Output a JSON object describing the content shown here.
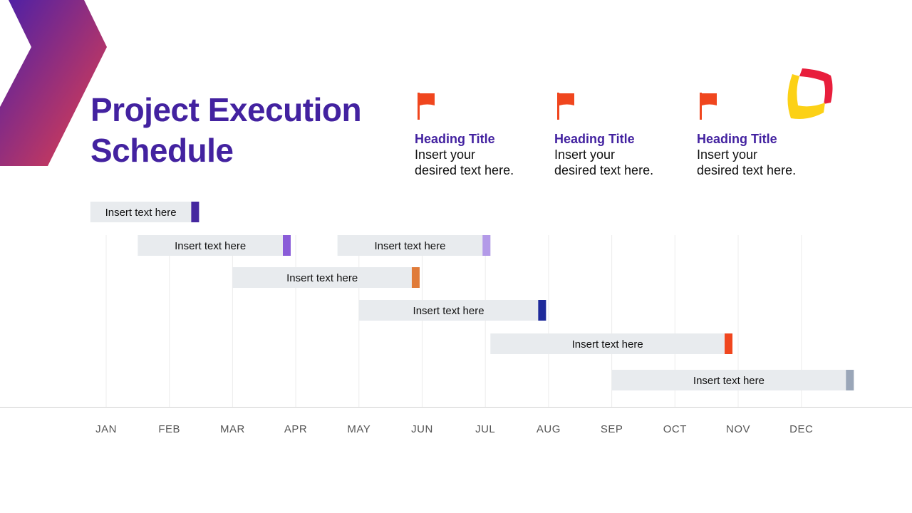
{
  "title_line1": "Project Execution",
  "title_line2": "Schedule",
  "cards": [
    {
      "heading": "Heading Title",
      "line1": "Insert your",
      "line2": "desired text here.",
      "icon": "flag-icon"
    },
    {
      "heading": "Heading Title",
      "line1": "Insert your",
      "line2": "desired text here.",
      "icon": "flag-icon"
    },
    {
      "heading": "Heading Title",
      "line1": "Insert your",
      "line2": "desired text here.",
      "icon": "flag-icon"
    }
  ],
  "colors": {
    "title": "#4322a0",
    "flag": "#f0461e",
    "bar_bg": "#e8ebee"
  },
  "chart_data": {
    "type": "gantt",
    "categories": [
      "JAN",
      "FEB",
      "MAR",
      "APR",
      "MAY",
      "JUN",
      "JUL",
      "AUG",
      "SEP",
      "OCT",
      "NOV",
      "DEC"
    ],
    "grid": true,
    "tasks": [
      {
        "label": "Insert text here",
        "row": 0,
        "start": 0.75,
        "end": 2.47,
        "color": "#4527a0"
      },
      {
        "label": "Insert text here",
        "row": 1,
        "start": 1.5,
        "end": 3.92,
        "color": "#8a5cd8"
      },
      {
        "label": "Insert text here",
        "row": 1,
        "start": 4.66,
        "end": 7.08,
        "color": "#b39ae8"
      },
      {
        "label": "Insert text here",
        "row": 2,
        "start": 3.0,
        "end": 5.96,
        "color": "#e07b39"
      },
      {
        "label": "Insert text here",
        "row": 3,
        "start": 5.0,
        "end": 7.96,
        "color": "#1e2a9a"
      },
      {
        "label": "Insert text here",
        "row": 4,
        "start": 7.08,
        "end": 10.91,
        "color": "#f0461e"
      },
      {
        "label": "Insert text here",
        "row": 5,
        "start": 9.0,
        "end": 12.83,
        "color": "#9aa6b8"
      }
    ]
  }
}
